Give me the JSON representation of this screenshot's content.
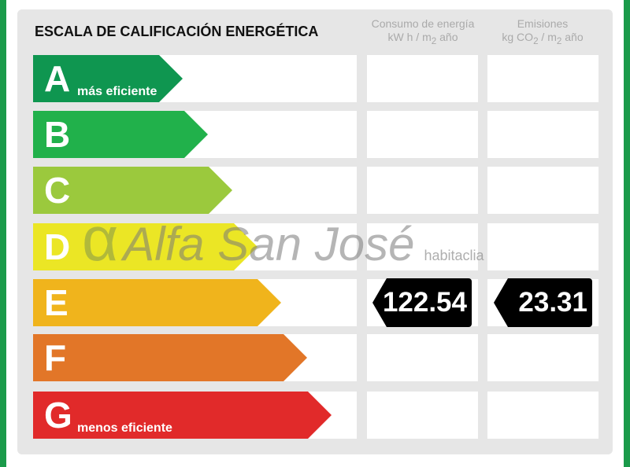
{
  "title": "ESCALA DE CALIFICACIÓN ENERGÉTICA",
  "columns": {
    "consumo": {
      "line1": "Consumo de energía",
      "line2_pre": "kW h / m",
      "line2_sub": "2",
      "line2_post": " año"
    },
    "emisiones": {
      "line1": "Emisiones",
      "line2_pre": "kg CO",
      "line2_sub": "2",
      "line2_mid": " / m",
      "line2_sub2": "2",
      "line2_post": " año"
    }
  },
  "chart_data": {
    "type": "table",
    "title": "ESCALA DE CALIFICACIÓN ENERGÉTICA",
    "ratings": [
      {
        "letter": "A",
        "label": "más eficiente",
        "color": "#0f9650"
      },
      {
        "letter": "B",
        "label": "",
        "color": "#21b14b"
      },
      {
        "letter": "C",
        "label": "",
        "color": "#9bc93d"
      },
      {
        "letter": "D",
        "label": "",
        "color": "#ebe625"
      },
      {
        "letter": "E",
        "label": "",
        "color": "#f0b41c"
      },
      {
        "letter": "F",
        "label": "",
        "color": "#e27628"
      },
      {
        "letter": "G",
        "label": "menos eficiente",
        "color": "#e12a2a"
      }
    ],
    "current_rating": "E",
    "consumo_value": "122.54",
    "emisiones_value": "23.31"
  },
  "watermark": {
    "brand": "Alfa San José",
    "alpha": "α",
    "site": "habitaclia"
  }
}
